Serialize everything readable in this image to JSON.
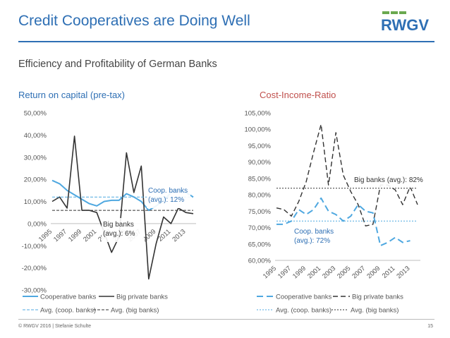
{
  "header": {
    "title": "Credit Cooperatives are Doing Well",
    "subtitle": "Efficiency and Profitability of German Banks",
    "logo_text": "RWGV"
  },
  "footer": {
    "text": "© RWGV 2016 | Stefanie Schulte",
    "page": "15"
  },
  "colors": {
    "coop": "#4fa8e0",
    "big": "#333333",
    "title": "#2e6fb4",
    "chart2_title": "#c0504d",
    "logo_green": "#6aa84f"
  },
  "chart_data": [
    {
      "type": "line",
      "title": "Return on capital (pre-tax)",
      "x": [
        1995,
        1996,
        1997,
        1998,
        1999,
        2000,
        2001,
        2002,
        2003,
        2004,
        2005,
        2006,
        2007,
        2008,
        2009,
        2010,
        2011,
        2012,
        2013,
        2014
      ],
      "x_tick_labels": [
        "1995",
        "1997",
        "1999",
        "2001",
        "2003",
        "2005",
        "2007",
        "2009",
        "2011",
        "2013"
      ],
      "y_tick_labels": [
        "50,00%",
        "40,00%",
        "30,00%",
        "20,00%",
        "10,00%",
        "0,00%",
        "-10,00%",
        "-20,00%",
        "-30,00%"
      ],
      "ylim": [
        -30,
        50
      ],
      "series": [
        {
          "name": "Cooperative banks",
          "style": "solid",
          "values": [
            19.5,
            18,
            15,
            13,
            11,
            9,
            8,
            10,
            10.5,
            10.5,
            13.5,
            12,
            10,
            6,
            8,
            10.5,
            14,
            15,
            14,
            12
          ]
        },
        {
          "name": "Big private banks",
          "style": "solid",
          "values": [
            10,
            12,
            7,
            39.5,
            6,
            6,
            5,
            -4,
            -13,
            -6,
            32,
            14,
            26,
            -25,
            -9,
            3,
            0,
            7,
            5,
            4.5
          ]
        },
        {
          "name": "Avg. (coop. banks)",
          "style": "dashed",
          "values": [
            12,
            12,
            12,
            12,
            12,
            12,
            12,
            12,
            12,
            12,
            12,
            12,
            12,
            12,
            12,
            12,
            12,
            12,
            12,
            12
          ]
        },
        {
          "name": "Avg. (big banks)",
          "style": "dashed",
          "values": [
            6,
            6,
            6,
            6,
            6,
            6,
            6,
            6,
            6,
            6,
            6,
            6,
            6,
            6,
            6,
            6,
            6,
            6,
            6,
            6
          ]
        }
      ],
      "annotations": [
        {
          "text_lines": [
            "Coop. banks",
            "(avg.): 12%"
          ]
        },
        {
          "text_lines": [
            "Big banks",
            "(avg.): 6%"
          ]
        }
      ],
      "legend": [
        "Cooperative banks",
        "Big private banks",
        "Avg. (coop. banks)",
        "Avg. (big banks)"
      ],
      "legend_position": "bottom"
    },
    {
      "type": "line",
      "title": "Cost-Income-Ratio",
      "x": [
        1995,
        1996,
        1997,
        1998,
        1999,
        2000,
        2001,
        2002,
        2003,
        2004,
        2005,
        2006,
        2007,
        2008,
        2009,
        2010,
        2011,
        2012,
        2013,
        2014
      ],
      "x_tick_labels": [
        "1995",
        "1997",
        "1999",
        "2001",
        "2003",
        "2005",
        "2007",
        "2009",
        "2011",
        "2013"
      ],
      "y_tick_labels": [
        "105,00%",
        "100,00%",
        "95,00%",
        "90,00%",
        "85,00%",
        "80,00%",
        "75,00%",
        "70,00%",
        "65,00%",
        "60,00%"
      ],
      "ylim": [
        60,
        105
      ],
      "series": [
        {
          "name": "Cooperative banks",
          "style": "dashed",
          "values": [
            71,
            71,
            72,
            75.5,
            74,
            75.5,
            79,
            75,
            74,
            72,
            73.5,
            77,
            75,
            74.5,
            64.5,
            65.5,
            67,
            65.5,
            66,
            null
          ]
        },
        {
          "name": "Big private banks",
          "style": "dashed",
          "values": [
            76,
            75.5,
            73.5,
            78,
            84,
            93,
            101.5,
            83,
            99,
            86,
            81,
            77,
            70.5,
            71,
            83,
            83,
            81.5,
            77,
            82.5,
            77
          ]
        },
        {
          "name": "Avg. (coop. banks)",
          "style": "dotted",
          "values": [
            72,
            72,
            72,
            72,
            72,
            72,
            72,
            72,
            72,
            72,
            72,
            72,
            72,
            72,
            72,
            72,
            72,
            72,
            72,
            72
          ]
        },
        {
          "name": "Avg. (big banks)",
          "style": "dotted",
          "values": [
            82,
            82,
            82,
            82,
            82,
            82,
            82,
            82,
            82,
            82,
            82,
            82,
            82,
            82,
            82,
            82,
            82,
            82,
            82,
            82
          ]
        }
      ],
      "annotations": [
        {
          "text_lines": [
            "Big banks (avg.): 82%"
          ]
        },
        {
          "text_lines": [
            "Coop. banks",
            "(avg.): 72%"
          ]
        }
      ],
      "legend": [
        "Cooperative banks",
        "Big private banks",
        "Avg. (coop. banks)",
        "Avg. (big banks)"
      ],
      "legend_position": "bottom"
    }
  ]
}
